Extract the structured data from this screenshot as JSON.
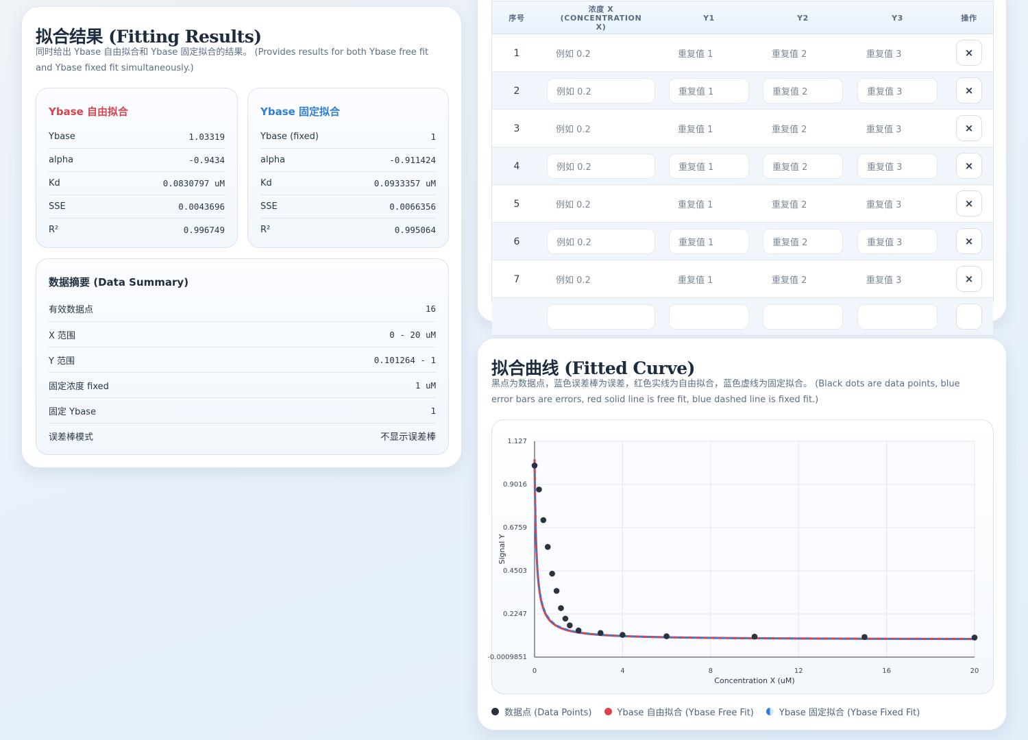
{
  "results": {
    "title": "拟合结果 (Fitting Results)",
    "desc_line1": "同时给出 Ybase 自由拟合和 Ybase 固定拟合的结果。 (Provides results for both Ybase free fit",
    "desc_line2": "and Ybase fixed fit simultaneously.)",
    "free_fit": {
      "title": "Ybase 自由拟合",
      "color": "#d9434f",
      "rows": [
        {
          "key": "Ybase",
          "val": "1.03319"
        },
        {
          "key": "alpha",
          "val": "-0.9434"
        },
        {
          "key": "Kd",
          "val": "0.0830797 uM"
        },
        {
          "key": "SSE",
          "val": "0.0043696"
        },
        {
          "key": "R²",
          "val": "0.996749"
        }
      ]
    },
    "fixed_fit": {
      "title": "Ybase 固定拟合",
      "color": "#2f7fd6",
      "rows": [
        {
          "key": "Ybase (fixed)",
          "val": "1"
        },
        {
          "key": "alpha",
          "val": "-0.911424"
        },
        {
          "key": "Kd",
          "val": "0.0933357 uM"
        },
        {
          "key": "SSE",
          "val": "0.0066356"
        },
        {
          "key": "R²",
          "val": "0.995064"
        }
      ]
    },
    "summary": {
      "title": "数据摘要 (Data Summary)",
      "rows": [
        {
          "key": "有效数据点",
          "val": "16"
        },
        {
          "key": "X 范围",
          "val": "0 - 20 uM"
        },
        {
          "key": "Y 范围",
          "val": "0.101264 - 1"
        },
        {
          "key": "固定浓度 fixed",
          "val": "1 uM"
        },
        {
          "key": "固定 Ybase",
          "val": "1"
        },
        {
          "key": "误差棒模式",
          "val": "不显示误差棒"
        }
      ]
    }
  },
  "table": {
    "headers": {
      "index": "序号",
      "conc_line1": "浓度 X (CONCENTRATION",
      "conc_line2": "X)",
      "y1": "Y1",
      "y2": "Y2",
      "y3": "Y3",
      "action": "操作"
    },
    "placeholders": {
      "conc": "例如 0.2",
      "y1": "重复值 1",
      "y2": "重复值 2",
      "y3": "重复值 3"
    },
    "delete_label": "×",
    "rows": [
      "1",
      "2",
      "3",
      "4",
      "5",
      "6",
      "7"
    ]
  },
  "chart": {
    "title": "拟合曲线 (Fitted Curve)",
    "desc_line1": "黑点为数据点，蓝色误差棒为误差，红色实线为自由拟合，蓝色虚线为固定拟合。 (Black dots are data points, blue",
    "desc_line2": "error bars are errors, red solid line is free fit, blue dashed line is fixed fit.)",
    "legend": {
      "points": "数据点 (Data Points)",
      "free": "Ybase 自由拟合 (Ybase Free Fit)",
      "fixed": "Ybase 固定拟合 (Ybase Fixed Fit)"
    }
  },
  "chart_data": {
    "type": "scatter",
    "title": "",
    "xlabel": "Concentration X (uM)",
    "ylabel": "Signal Y",
    "xlim": [
      0,
      20
    ],
    "ylim": [
      -0.0009851,
      1.127
    ],
    "x_ticks": [
      "0",
      "4",
      "8",
      "12",
      "16",
      "20"
    ],
    "y_ticks": [
      "-0.0009851",
      "0.2247",
      "0.4503",
      "0.6759",
      "0.9016",
      "1.127"
    ],
    "grid": true,
    "legend_position": "bottom",
    "points": {
      "name": "数据点 (Data Points)",
      "color": "#2b3240",
      "x": [
        0,
        0.2,
        0.4,
        0.6,
        0.8,
        1.0,
        1.2,
        1.4,
        1.6,
        2.0,
        3.0,
        4.0,
        6.0,
        10.0,
        15.0,
        20.0
      ],
      "y": [
        1.0,
        0.875,
        0.715,
        0.575,
        0.435,
        0.345,
        0.255,
        0.2,
        0.165,
        0.138,
        0.125,
        0.115,
        0.108,
        0.106,
        0.104,
        0.101264
      ]
    },
    "series": [
      {
        "name": "Ybase 自由拟合 (Ybase Free Fit)",
        "color": "#d9434f",
        "style": "solid",
        "ybase": 1.03319,
        "alpha": -0.9434,
        "kd": 0.0830797
      },
      {
        "name": "Ybase 固定拟合 (Ybase Fixed Fit)",
        "color": "#2f7fd6",
        "style": "dashed",
        "ybase": 1,
        "alpha": -0.911424,
        "kd": 0.0933357
      }
    ]
  }
}
